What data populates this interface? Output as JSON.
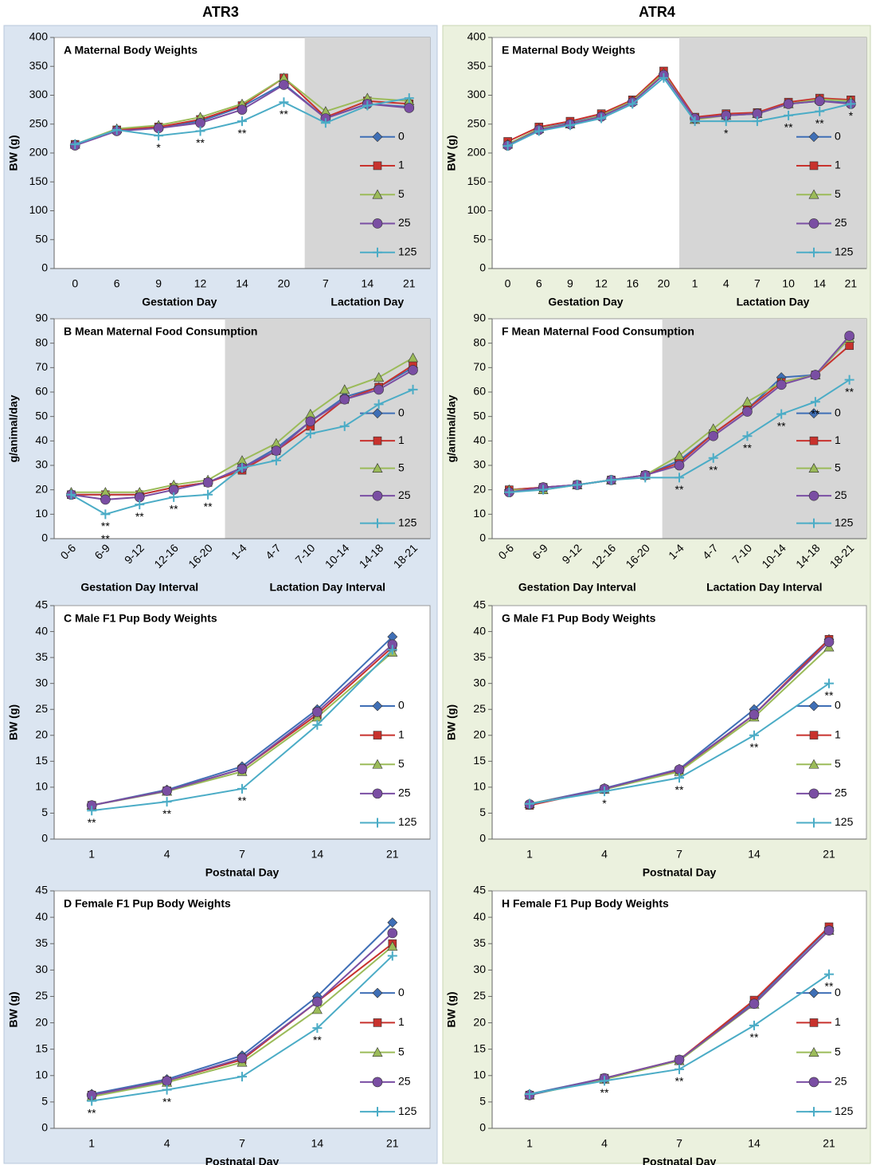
{
  "headers": [
    "ATR3",
    "ATR4"
  ],
  "chart_data": [
    {
      "type": "line",
      "title": "A  Maternal Body Weights",
      "ylabel": "BW (g)",
      "ylim": [
        0,
        400
      ],
      "yticks": [
        0,
        50,
        100,
        150,
        200,
        250,
        300,
        350,
        400
      ],
      "groups": [
        {
          "label": "Gestation Day",
          "categories": [
            "0",
            "6",
            "9",
            "12",
            "14",
            "20"
          ],
          "shade": false
        },
        {
          "label": "Lactation Day",
          "categories": [
            "7",
            "14",
            "21"
          ],
          "shade": true
        }
      ],
      "series": [
        {
          "name": "0",
          "color": "#3f6fb6",
          "marker": "diamond",
          "values": [
            215,
            240,
            245,
            255,
            280,
            320,
            260,
            285,
            280
          ]
        },
        {
          "name": "1",
          "color": "#c8322d",
          "marker": "square",
          "values": [
            215,
            240,
            245,
            258,
            282,
            330,
            262,
            290,
            285
          ]
        },
        {
          "name": "5",
          "color": "#9bbb59",
          "marker": "triangle",
          "values": [
            215,
            242,
            248,
            262,
            285,
            330,
            272,
            295,
            290
          ]
        },
        {
          "name": "25",
          "color": "#7a4ea3",
          "marker": "circle",
          "values": [
            213,
            238,
            243,
            252,
            275,
            318,
            260,
            285,
            278
          ]
        },
        {
          "name": "125",
          "color": "#4bacc6",
          "marker": "plus",
          "values": [
            215,
            240,
            230,
            238,
            255,
            288,
            252,
            282,
            295
          ]
        }
      ],
      "annotations": [
        {
          "text": "*",
          "x": "9"
        },
        {
          "text": "**",
          "x": "12"
        },
        {
          "text": "**",
          "x": "14"
        },
        {
          "text": "**",
          "x": "20"
        }
      ]
    },
    {
      "type": "line",
      "title": "B  Mean Maternal Food Consumption",
      "ylabel": "g/animal/day",
      "ylim": [
        0,
        90
      ],
      "yticks": [
        0,
        10,
        20,
        30,
        40,
        50,
        60,
        70,
        80,
        90
      ],
      "rotate_xticks": true,
      "groups": [
        {
          "label": "Gestation Day Interval",
          "categories": [
            "0-6",
            "6-9",
            "9-12",
            "12-16",
            "16-20"
          ],
          "shade": false
        },
        {
          "label": "Lactation Day Interval",
          "categories": [
            "1-4",
            "4-7",
            "7-10",
            "10-14",
            "14-18",
            "18-21"
          ],
          "shade": true
        }
      ],
      "series": [
        {
          "name": "0",
          "color": "#3f6fb6",
          "marker": "diamond",
          "values": [
            18,
            18,
            18,
            21,
            23,
            29,
            37,
            48,
            58,
            62,
            70
          ]
        },
        {
          "name": "1",
          "color": "#c8322d",
          "marker": "square",
          "values": [
            18,
            18,
            18,
            21,
            23,
            28,
            36,
            46,
            57,
            62,
            71
          ]
        },
        {
          "name": "5",
          "color": "#9bbb59",
          "marker": "triangle",
          "values": [
            19,
            19,
            19,
            22,
            24,
            32,
            39,
            51,
            61,
            66,
            74
          ]
        },
        {
          "name": "25",
          "color": "#7a4ea3",
          "marker": "circle",
          "values": [
            18,
            16,
            17,
            20,
            23,
            29,
            36,
            48,
            57,
            61,
            69
          ]
        },
        {
          "name": "125",
          "color": "#4bacc6",
          "marker": "plus",
          "values": [
            18,
            10,
            14,
            17,
            18,
            29,
            32,
            43,
            46,
            55,
            61
          ]
        }
      ],
      "annotations": [
        {
          "text": "**",
          "x": "6-9"
        },
        {
          "text": "**",
          "x": "6-9"
        },
        {
          "text": "**",
          "x": "9-12"
        },
        {
          "text": "**",
          "x": "12-16"
        },
        {
          "text": "**",
          "x": "16-20"
        }
      ]
    },
    {
      "type": "line",
      "title": "C  Male F1 Pup Body Weights",
      "ylabel": "BW (g)",
      "ylim": [
        0,
        45
      ],
      "yticks": [
        0,
        5,
        10,
        15,
        20,
        25,
        30,
        35,
        40,
        45
      ],
      "groups": [
        {
          "label": "Postnatal Day",
          "categories": [
            "1",
            "4",
            "7",
            "14",
            "21"
          ],
          "shade": false
        }
      ],
      "series": [
        {
          "name": "0",
          "color": "#3f6fb6",
          "marker": "diamond",
          "values": [
            6.5,
            9.5,
            14,
            25,
            39
          ]
        },
        {
          "name": "1",
          "color": "#c8322d",
          "marker": "square",
          "values": [
            6.5,
            9.3,
            13.5,
            24,
            37
          ]
        },
        {
          "name": "5",
          "color": "#9bbb59",
          "marker": "triangle",
          "values": [
            6.5,
            9.2,
            13,
            23.5,
            36
          ]
        },
        {
          "name": "25",
          "color": "#7a4ea3",
          "marker": "circle",
          "values": [
            6.5,
            9.3,
            13.5,
            24.5,
            37.5
          ]
        },
        {
          "name": "125",
          "color": "#4bacc6",
          "marker": "plus",
          "values": [
            5.5,
            7.2,
            9.7,
            22,
            36.5
          ]
        }
      ],
      "annotations": [
        {
          "text": "**",
          "x": "1"
        },
        {
          "text": "**",
          "x": "4"
        },
        {
          "text": "**",
          "x": "7"
        }
      ]
    },
    {
      "type": "line",
      "title": "D  Female F1 Pup Body Weights",
      "ylabel": "BW (g)",
      "ylim": [
        0,
        45
      ],
      "yticks": [
        0,
        5,
        10,
        15,
        20,
        25,
        30,
        35,
        40,
        45
      ],
      "groups": [
        {
          "label": "Postnatal Day",
          "categories": [
            "1",
            "4",
            "7",
            "14",
            "21"
          ],
          "shade": false
        }
      ],
      "series": [
        {
          "name": "0",
          "color": "#3f6fb6",
          "marker": "diamond",
          "values": [
            6.5,
            9.3,
            13.8,
            25,
            39
          ]
        },
        {
          "name": "1",
          "color": "#c8322d",
          "marker": "square",
          "values": [
            6.3,
            9,
            13,
            24,
            35
          ]
        },
        {
          "name": "5",
          "color": "#9bbb59",
          "marker": "triangle",
          "values": [
            6,
            8.7,
            12.5,
            22.5,
            34.5
          ]
        },
        {
          "name": "25",
          "color": "#7a4ea3",
          "marker": "circle",
          "values": [
            6.3,
            9,
            13.3,
            24,
            37
          ]
        },
        {
          "name": "125",
          "color": "#4bacc6",
          "marker": "plus",
          "values": [
            5.2,
            7.3,
            9.8,
            19,
            32.7
          ]
        }
      ],
      "annotations": [
        {
          "text": "**",
          "x": "1"
        },
        {
          "text": "**",
          "x": "4"
        },
        {
          "text": "**",
          "x": "14"
        }
      ]
    },
    {
      "type": "line",
      "title": "E  Maternal Body Weights",
      "ylabel": "BW (g)",
      "ylim": [
        0,
        400
      ],
      "yticks": [
        0,
        50,
        100,
        150,
        200,
        250,
        300,
        350,
        400
      ],
      "groups": [
        {
          "label": "Gestation Day",
          "categories": [
            "0",
            "6",
            "9",
            "12",
            "16",
            "20"
          ],
          "shade": false
        },
        {
          "label": "Lactation Day",
          "categories": [
            "1",
            "4",
            "7",
            "10",
            "14",
            "21"
          ],
          "shade": true
        }
      ],
      "series": [
        {
          "name": "0",
          "color": "#3f6fb6",
          "marker": "diamond",
          "values": [
            215,
            242,
            252,
            265,
            290,
            338,
            260,
            265,
            268,
            285,
            290,
            287
          ]
        },
        {
          "name": "1",
          "color": "#c8322d",
          "marker": "square",
          "values": [
            220,
            245,
            255,
            268,
            292,
            342,
            262,
            268,
            270,
            288,
            295,
            292
          ]
        },
        {
          "name": "5",
          "color": "#9bbb59",
          "marker": "triangle",
          "values": [
            215,
            242,
            250,
            265,
            290,
            338,
            258,
            265,
            268,
            285,
            293,
            290
          ]
        },
        {
          "name": "25",
          "color": "#7a4ea3",
          "marker": "circle",
          "values": [
            213,
            240,
            250,
            263,
            288,
            335,
            260,
            265,
            268,
            285,
            290,
            285
          ]
        },
        {
          "name": "125",
          "color": "#4bacc6",
          "marker": "plus",
          "values": [
            212,
            238,
            248,
            260,
            285,
            330,
            255,
            255,
            255,
            265,
            272,
            285
          ]
        }
      ],
      "annotations": [
        {
          "text": "*",
          "x": "4"
        },
        {
          "text": "**",
          "x": "10"
        },
        {
          "text": "**",
          "x": "14"
        },
        {
          "text": "*",
          "x": "21"
        }
      ]
    },
    {
      "type": "line",
      "title": "F  Mean Maternal Food Consumption",
      "ylabel": "g/animal/day",
      "ylim": [
        0,
        90
      ],
      "yticks": [
        0,
        10,
        20,
        30,
        40,
        50,
        60,
        70,
        80,
        90
      ],
      "rotate_xticks": true,
      "groups": [
        {
          "label": "Gestation Day Interval",
          "categories": [
            "0-6",
            "6-9",
            "9-12",
            "12-16",
            "16-20"
          ],
          "shade": false
        },
        {
          "label": "Lactation Day Interval",
          "categories": [
            "1-4",
            "4-7",
            "7-10",
            "10-14",
            "14-18",
            "18-21"
          ],
          "shade": true
        }
      ],
      "series": [
        {
          "name": "0",
          "color": "#3f6fb6",
          "marker": "diamond",
          "values": [
            20,
            21,
            22,
            24,
            26,
            32,
            43,
            53,
            66,
            67,
            82
          ]
        },
        {
          "name": "1",
          "color": "#c8322d",
          "marker": "square",
          "values": [
            20,
            21,
            22,
            24,
            26,
            31,
            43,
            53,
            64,
            67,
            79
          ]
        },
        {
          "name": "5",
          "color": "#9bbb59",
          "marker": "triangle",
          "values": [
            20,
            20,
            22,
            24,
            26,
            34,
            45,
            56,
            64,
            67,
            82
          ]
        },
        {
          "name": "25",
          "color": "#7a4ea3",
          "marker": "circle",
          "values": [
            19,
            21,
            22,
            24,
            26,
            30,
            42,
            52,
            63,
            67,
            83
          ]
        },
        {
          "name": "125",
          "color": "#4bacc6",
          "marker": "plus",
          "values": [
            19,
            20,
            22,
            24,
            25,
            25,
            33,
            42,
            51,
            56,
            65
          ]
        }
      ],
      "annotations": [
        {
          "text": "**",
          "x": "1-4"
        },
        {
          "text": "**",
          "x": "4-7"
        },
        {
          "text": "**",
          "x": "7-10"
        },
        {
          "text": "**",
          "x": "10-14"
        },
        {
          "text": "**",
          "x": "14-18"
        },
        {
          "text": "**",
          "x": "18-21"
        }
      ]
    },
    {
      "type": "line",
      "title": "G  Male F1 Pup Body Weights",
      "ylabel": "BW (g)",
      "ylim": [
        0,
        45
      ],
      "yticks": [
        0,
        5,
        10,
        15,
        20,
        25,
        30,
        35,
        40,
        45
      ],
      "groups": [
        {
          "label": "Postnatal Day",
          "categories": [
            "1",
            "4",
            "7",
            "14",
            "21"
          ],
          "shade": false
        }
      ],
      "series": [
        {
          "name": "0",
          "color": "#3f6fb6",
          "marker": "diamond",
          "values": [
            6.8,
            9.8,
            13.5,
            25,
            38.5
          ]
        },
        {
          "name": "1",
          "color": "#c8322d",
          "marker": "square",
          "values": [
            6.5,
            9.6,
            13.2,
            24,
            38.5
          ]
        },
        {
          "name": "5",
          "color": "#9bbb59",
          "marker": "triangle",
          "values": [
            6.8,
            9.6,
            13,
            23.5,
            37
          ]
        },
        {
          "name": "25",
          "color": "#7a4ea3",
          "marker": "circle",
          "values": [
            6.7,
            9.7,
            13.4,
            24,
            38
          ]
        },
        {
          "name": "125",
          "color": "#4bacc6",
          "marker": "plus",
          "values": [
            6.8,
            9.2,
            11.8,
            20,
            30
          ]
        }
      ],
      "annotations": [
        {
          "text": "*",
          "x": "4"
        },
        {
          "text": "**",
          "x": "7"
        },
        {
          "text": "**",
          "x": "14"
        },
        {
          "text": "**",
          "x": "21"
        }
      ]
    },
    {
      "type": "line",
      "title": "H  Female F1 Pup Body Weights",
      "ylabel": "BW (g)",
      "ylim": [
        0,
        45
      ],
      "yticks": [
        0,
        5,
        10,
        15,
        20,
        25,
        30,
        35,
        40,
        45
      ],
      "groups": [
        {
          "label": "Postnatal Day",
          "categories": [
            "1",
            "4",
            "7",
            "14",
            "21"
          ],
          "shade": false
        }
      ],
      "series": [
        {
          "name": "0",
          "color": "#3f6fb6",
          "marker": "diamond",
          "values": [
            6.5,
            9.5,
            13,
            24,
            38
          ]
        },
        {
          "name": "1",
          "color": "#c8322d",
          "marker": "square",
          "values": [
            6.3,
            9.5,
            13,
            24.3,
            38.2
          ]
        },
        {
          "name": "5",
          "color": "#9bbb59",
          "marker": "triangle",
          "values": [
            6.3,
            9.3,
            12.8,
            23.5,
            37.5
          ]
        },
        {
          "name": "25",
          "color": "#7a4ea3",
          "marker": "circle",
          "values": [
            6.3,
            9.5,
            13,
            23.6,
            37.5
          ]
        },
        {
          "name": "125",
          "color": "#4bacc6",
          "marker": "plus",
          "values": [
            6.5,
            9,
            11.2,
            19.5,
            29.2
          ]
        }
      ],
      "annotations": [
        {
          "text": "**",
          "x": "4"
        },
        {
          "text": "**",
          "x": "7"
        },
        {
          "text": "**",
          "x": "14"
        },
        {
          "text": "**",
          "x": "21"
        }
      ]
    }
  ]
}
